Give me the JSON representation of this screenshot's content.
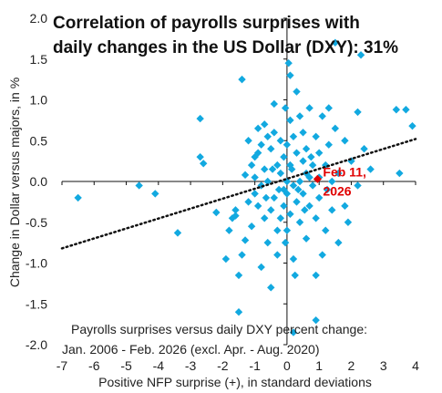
{
  "chart_data": {
    "type": "scatter",
    "title_lines": [
      "Correlation of payrolls surprises with",
      "daily changes in the US Dollar (DXY): 31%"
    ],
    "xlabel": "Positive NFP surprise (+), in standard deviations",
    "ylabel": "Change in Dollar versus majors, in %",
    "xlim": [
      -7,
      4
    ],
    "ylim": [
      -2.0,
      2.0
    ],
    "xticks": [
      -7,
      -6,
      -5,
      -4,
      -3,
      -2,
      -1,
      0,
      1,
      2,
      3,
      4
    ],
    "xtick_labels": [
      "-7",
      "-6",
      "-5",
      "-4",
      "-3",
      "-2",
      "-1",
      "0",
      "1",
      "2",
      "3",
      "4"
    ],
    "yticks": [
      2.0,
      1.5,
      1.0,
      0.5,
      0.0,
      -0.5,
      -1.0,
      -1.5,
      -2.0
    ],
    "ytick_labels": [
      "2.0",
      "1.5",
      "1.0",
      "0.5",
      "0.0",
      "-0.5",
      "-1.0",
      "-1.5",
      "-2.0"
    ],
    "grid": false,
    "note_lines": [
      "Payrolls surprises versus daily DXY percent change:",
      "Jan. 2006 - Feb. 2026 (excl. Apr. - Aug. 2020)"
    ],
    "marker_color": "#12a9e0",
    "trendline": {
      "x": [
        -7,
        4
      ],
      "y": [
        -0.82,
        0.52
      ],
      "color": "#111111",
      "style": "dotted"
    },
    "highlight": {
      "label_lines": [
        "Feb 11,",
        "2026"
      ],
      "x": 0.95,
      "y": 0.03,
      "color": "#e00000"
    },
    "points": [
      [
        -6.5,
        -0.2
      ],
      [
        -4.6,
        -0.05
      ],
      [
        -4.1,
        -0.15
      ],
      [
        -3.4,
        -0.63
      ],
      [
        -2.7,
        0.3
      ],
      [
        -2.6,
        0.22
      ],
      [
        -2.7,
        0.77
      ],
      [
        -2.2,
        -0.38
      ],
      [
        -1.8,
        -0.6
      ],
      [
        -1.7,
        -0.45
      ],
      [
        -1.6,
        -0.42
      ],
      [
        -1.6,
        -0.35
      ],
      [
        -1.5,
        -1.6
      ],
      [
        -1.5,
        -1.15
      ],
      [
        -1.4,
        -0.9
      ],
      [
        -1.4,
        1.25
      ],
      [
        -1.3,
        -0.72
      ],
      [
        -1.3,
        0.08
      ],
      [
        -1.2,
        0.5
      ],
      [
        -1.2,
        -0.25
      ],
      [
        -1.1,
        0.2
      ],
      [
        -1.1,
        -0.55
      ],
      [
        -1.0,
        0.3
      ],
      [
        -1.0,
        0.05
      ],
      [
        -1.0,
        -0.15
      ],
      [
        -0.9,
        0.35
      ],
      [
        -0.9,
        0.65
      ],
      [
        -0.9,
        -0.3
      ],
      [
        -0.8,
        -0.05
      ],
      [
        -0.8,
        -1.05
      ],
      [
        -0.8,
        0.45
      ],
      [
        -0.7,
        0.7
      ],
      [
        -0.7,
        -0.45
      ],
      [
        -0.7,
        0.15
      ],
      [
        -0.6,
        0.0
      ],
      [
        -0.6,
        -0.75
      ],
      [
        -0.6,
        0.55
      ],
      [
        -0.5,
        -1.3
      ],
      [
        -0.5,
        -0.35
      ],
      [
        -0.5,
        0.4
      ],
      [
        -0.4,
        0.95
      ],
      [
        -0.4,
        -0.2
      ],
      [
        -0.4,
        0.6
      ],
      [
        -0.3,
        -0.6
      ],
      [
        -0.3,
        0.2
      ],
      [
        -0.3,
        -0.9
      ],
      [
        -0.2,
        0.1
      ],
      [
        -0.2,
        -0.45
      ],
      [
        -0.2,
        0.5
      ],
      [
        -0.1,
        -0.1
      ],
      [
        -0.1,
        0.3
      ],
      [
        -0.1,
        -0.3
      ],
      [
        0.0,
        0.0
      ],
      [
        0.0,
        -0.15
      ],
      [
        0.0,
        0.45
      ],
      [
        0.0,
        -0.6
      ],
      [
        0.05,
        1.45
      ],
      [
        0.1,
        1.3
      ],
      [
        0.1,
        0.75
      ],
      [
        0.1,
        -0.4
      ],
      [
        0.1,
        0.2
      ],
      [
        0.2,
        -0.05
      ],
      [
        0.2,
        0.55
      ],
      [
        0.2,
        -0.95
      ],
      [
        0.3,
        1.1
      ],
      [
        0.3,
        0.35
      ],
      [
        0.3,
        -0.25
      ],
      [
        0.4,
        0.8
      ],
      [
        0.4,
        0.0
      ],
      [
        0.4,
        -0.5
      ],
      [
        0.5,
        0.25
      ],
      [
        0.5,
        -0.15
      ],
      [
        0.5,
        0.6
      ],
      [
        0.6,
        0.1
      ],
      [
        0.6,
        -0.7
      ],
      [
        0.6,
        0.4
      ],
      [
        0.7,
        -0.3
      ],
      [
        0.7,
        0.9
      ],
      [
        0.8,
        0.2
      ],
      [
        0.8,
        -0.05
      ],
      [
        0.9,
        0.55
      ],
      [
        0.9,
        -0.45
      ],
      [
        0.9,
        -1.15
      ],
      [
        0.9,
        -1.7
      ],
      [
        1.0,
        0.35
      ],
      [
        1.0,
        0.05
      ],
      [
        1.0,
        -0.2
      ],
      [
        1.1,
        0.8
      ],
      [
        1.2,
        0.2
      ],
      [
        1.2,
        -0.6
      ],
      [
        1.3,
        0.9
      ],
      [
        1.3,
        0.45
      ],
      [
        1.4,
        0.0
      ],
      [
        1.4,
        -0.35
      ],
      [
        1.5,
        1.7
      ],
      [
        1.5,
        0.65
      ],
      [
        1.6,
        0.1
      ],
      [
        1.6,
        -0.75
      ],
      [
        1.8,
        0.5
      ],
      [
        1.8,
        -0.3
      ],
      [
        1.9,
        -0.5
      ],
      [
        2.0,
        0.25
      ],
      [
        2.2,
        0.85
      ],
      [
        2.2,
        -0.05
      ],
      [
        2.3,
        1.55
      ],
      [
        2.4,
        0.4
      ],
      [
        2.6,
        0.15
      ],
      [
        3.4,
        0.88
      ],
      [
        3.7,
        0.88
      ],
      [
        3.5,
        0.1
      ],
      [
        3.9,
        0.68
      ],
      [
        -0.05,
        0.9
      ],
      [
        -0.05,
        -0.75
      ],
      [
        0.2,
        -1.85
      ],
      [
        0.25,
        -1.15
      ],
      [
        1.1,
        -0.9
      ],
      [
        0.7,
        0.05
      ],
      [
        -1.9,
        -0.95
      ],
      [
        0.15,
        0.15
      ],
      [
        -0.25,
        -0.1
      ],
      [
        0.35,
        -0.1
      ],
      [
        0.55,
        -0.35
      ],
      [
        -0.45,
        0.15
      ],
      [
        0.75,
        0.3
      ],
      [
        -0.65,
        -0.2
      ],
      [
        1.25,
        -0.1
      ]
    ]
  }
}
